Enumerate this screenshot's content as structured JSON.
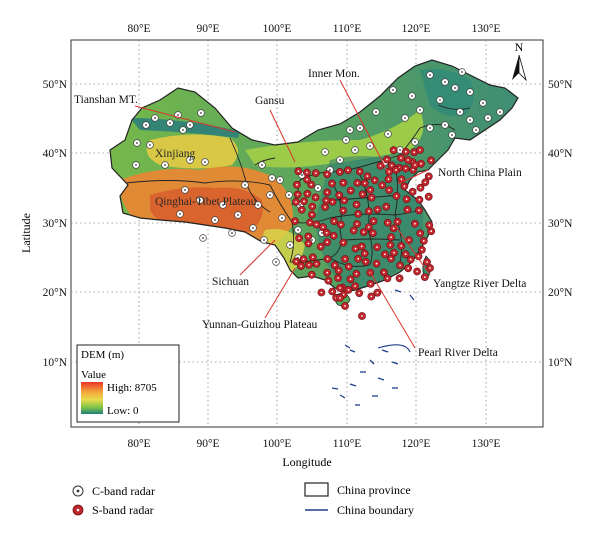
{
  "map": {
    "lon_ticks": [
      "80°E",
      "90°E",
      "100°E",
      "110°E",
      "120°E",
      "130°E"
    ],
    "lat_ticks": [
      "50°N",
      "40°N",
      "30°N",
      "20°N",
      "10°N"
    ],
    "x_axis_label": "Longitude",
    "y_axis_label": "Latitude",
    "north_arrow": "N",
    "labels": {
      "tianshan": "Tianshan MT.",
      "gansu": "Gansu",
      "inner_mon": "Inner Mon.",
      "xinjiang": "Xinjiang",
      "qinghai": "Qinghai-Tibet Plateau",
      "north_china": "North China Plain",
      "sichuan": "Sichuan",
      "yangtze": "Yangtze River Delta",
      "yunnan": "Yunnan-Guizhou Plateau",
      "pearl": "Pearl River Delta"
    },
    "dem_legend": {
      "title": "DEM (m)",
      "value_label": "Value",
      "high_label": "High: 8705",
      "low_label": "Low: 0",
      "high": 8705,
      "low": 0
    },
    "colors": {
      "dem_high": "#e8342a",
      "dem_mid_high": "#f2a33a",
      "dem_mid": "#e9dc4c",
      "dem_mid_low": "#7cc24a",
      "dem_low": "#1e7d7a",
      "s_band": "#c0272d",
      "c_band": "#ffffff",
      "province_border": "#222222",
      "china_boundary": "#1f3f8a"
    }
  },
  "legend": {
    "c_band": "C-band radar",
    "s_band": "S-band radar",
    "province": "China province",
    "boundary": "China boundary"
  }
}
